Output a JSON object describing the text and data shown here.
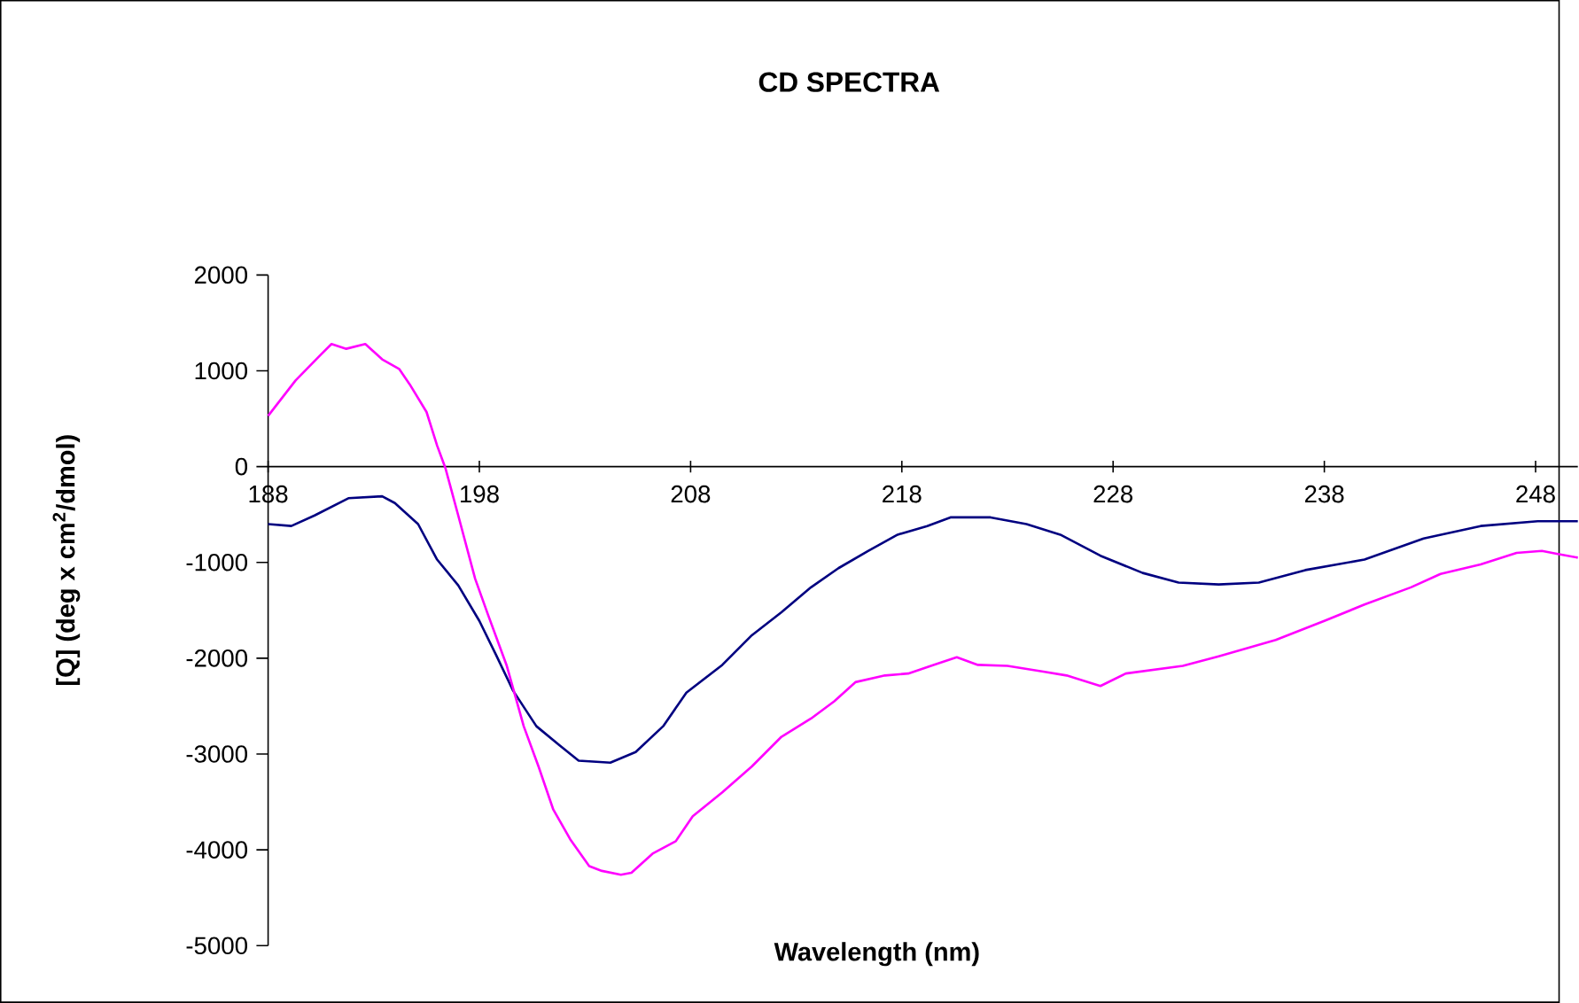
{
  "chart_data": {
    "type": "line",
    "title": "CD SPECTRA",
    "xlabel": "Wavelength (nm)",
    "ylabel": "[Q] (deg x cm$^{2}$/dmol)",
    "xlim": [
      188,
      250
    ],
    "ylim": [
      -5000,
      2000
    ],
    "xticks": [
      188,
      198,
      208,
      218,
      228,
      238,
      248
    ],
    "yticks": [
      -5000,
      -4000,
      -3000,
      -2000,
      -1000,
      0,
      1000,
      2000
    ],
    "marker": "none",
    "line_style": "solid",
    "series": [
      {
        "color": "#000080",
        "x": [
          188,
          189.1,
          190.2,
          191,
          191.8,
          193.4,
          194,
          195.1,
          196,
          197,
          198,
          198.8,
          199.6,
          200.7,
          201.8,
          202.7,
          204.2,
          205.4,
          206.7,
          207.8,
          209.5,
          210.9,
          212.3,
          213.7,
          215,
          216.4,
          217.8,
          219.2,
          220.3,
          222.2,
          223.9,
          225.5,
          227.4,
          229.4,
          231.1,
          233,
          234.9,
          237.1,
          239.9,
          242.7,
          245.4,
          248.1,
          250
        ],
        "values": [
          -600,
          -620,
          -510,
          -420,
          -330,
          -310,
          -380,
          -600,
          -970,
          -1240,
          -1610,
          -1970,
          -2340,
          -2710,
          -2910,
          -3070,
          -3090,
          -2980,
          -2710,
          -2360,
          -2070,
          -1760,
          -1520,
          -1260,
          -1060,
          -880,
          -710,
          -620,
          -530,
          -530,
          -600,
          -710,
          -930,
          -1110,
          -1210,
          -1230,
          -1210,
          -1080,
          -970,
          -750,
          -620,
          -570,
          -570
        ]
      },
      {
        "color": "#ff00ff",
        "x": [
          188,
          189.3,
          190.5,
          191,
          191.7,
          192.6,
          193.4,
          194.2,
          194.7,
          195.5,
          196,
          196.4,
          197,
          197.8,
          198.4,
          199.3,
          200.1,
          200.8,
          201.5,
          202.3,
          203.2,
          203.8,
          204.7,
          205.2,
          206.2,
          207.3,
          208.1,
          209.5,
          210.9,
          212.3,
          213.7,
          214.8,
          215.8,
          217.2,
          218.3,
          219.5,
          220.6,
          221.6,
          223,
          224.7,
          225.8,
          227.4,
          228.6,
          231.3,
          233,
          235.7,
          238,
          239.9,
          242.1,
          243.5,
          245.4,
          247.1,
          248.3,
          249,
          250
        ],
        "values": [
          530,
          900,
          1170,
          1280,
          1230,
          1280,
          1120,
          1020,
          860,
          570,
          220,
          -20,
          -510,
          -1170,
          -1540,
          -2080,
          -2710,
          -3130,
          -3580,
          -3890,
          -4170,
          -4220,
          -4260,
          -4240,
          -4040,
          -3910,
          -3650,
          -3400,
          -3130,
          -2820,
          -2630,
          -2450,
          -2250,
          -2180,
          -2160,
          -2070,
          -1990,
          -2070,
          -2080,
          -2140,
          -2180,
          -2290,
          -2160,
          -2080,
          -1980,
          -1810,
          -1610,
          -1440,
          -1260,
          -1120,
          -1020,
          -900,
          -880,
          -910,
          -950
        ]
      }
    ]
  }
}
